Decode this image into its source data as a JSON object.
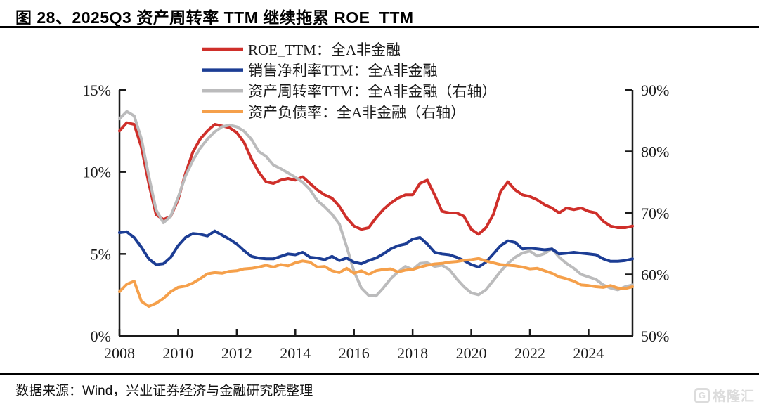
{
  "header": {
    "title": "图 28、2025Q3 资产周转率 TTM 继续拖累 ROE_TTM"
  },
  "footer": {
    "source_text": "数据来源：Wind，兴业证券经济与金融研究院整理"
  },
  "watermark": {
    "logo_letter": "G",
    "text": "格隆汇"
  },
  "chart_data": {
    "type": "line",
    "title": "",
    "grid": false,
    "legend_position": "top",
    "x": [
      2008.0,
      2008.25,
      2008.5,
      2008.75,
      2009.0,
      2009.25,
      2009.5,
      2009.75,
      2010.0,
      2010.25,
      2010.5,
      2010.75,
      2011.0,
      2011.25,
      2011.5,
      2011.75,
      2012.0,
      2012.25,
      2012.5,
      2012.75,
      2013.0,
      2013.25,
      2013.5,
      2013.75,
      2014.0,
      2014.25,
      2014.5,
      2014.75,
      2015.0,
      2015.25,
      2015.5,
      2015.75,
      2016.0,
      2016.25,
      2016.5,
      2016.75,
      2017.0,
      2017.25,
      2017.5,
      2017.75,
      2018.0,
      2018.25,
      2018.5,
      2018.75,
      2019.0,
      2019.25,
      2019.5,
      2019.75,
      2020.0,
      2020.25,
      2020.5,
      2020.75,
      2021.0,
      2021.25,
      2021.5,
      2021.75,
      2022.0,
      2022.25,
      2022.5,
      2022.75,
      2023.0,
      2023.25,
      2023.5,
      2023.75,
      2024.0,
      2024.25,
      2024.5,
      2024.75,
      2025.0,
      2025.25,
      2025.5
    ],
    "x_range": [
      2008.0,
      2025.5
    ],
    "x_tick_years": [
      2008,
      2010,
      2012,
      2014,
      2016,
      2018,
      2020,
      2022,
      2024
    ],
    "x_tick_labels": [
      "2008",
      "2010",
      "2012",
      "2014",
      "2016",
      "2018",
      "2020",
      "2022",
      "2024"
    ],
    "left_axis": {
      "min": 0,
      "max": 15,
      "tick_values": [
        0,
        5,
        10,
        15
      ],
      "tick_labels": [
        "0%",
        "5%",
        "10%",
        "15%"
      ]
    },
    "right_axis": {
      "min": 50,
      "max": 90,
      "tick_values": [
        50,
        60,
        70,
        80,
        90
      ],
      "tick_labels": [
        "50%",
        "60%",
        "70%",
        "80%",
        "90%"
      ]
    },
    "series": [
      {
        "name": "ROE_TTM：全A非金融",
        "axis": "left",
        "color": "#cf2f2a",
        "values": [
          12.5,
          13.0,
          12.9,
          11.5,
          9.3,
          7.4,
          7.1,
          7.3,
          8.3,
          9.9,
          11.2,
          12.0,
          12.5,
          12.9,
          12.8,
          12.7,
          12.4,
          11.8,
          10.8,
          10.0,
          9.4,
          9.3,
          9.5,
          9.6,
          9.5,
          9.7,
          9.3,
          8.9,
          8.6,
          8.4,
          7.9,
          7.2,
          6.7,
          6.5,
          6.6,
          7.2,
          7.7,
          8.1,
          8.4,
          8.6,
          8.6,
          9.3,
          9.5,
          8.6,
          7.6,
          7.5,
          7.5,
          7.3,
          6.5,
          6.2,
          6.6,
          7.4,
          8.8,
          9.4,
          8.9,
          8.6,
          8.5,
          8.3,
          8.0,
          7.8,
          7.5,
          7.8,
          7.7,
          7.8,
          7.6,
          7.5,
          7.0,
          6.7,
          6.6,
          6.6,
          6.7
        ]
      },
      {
        "name": "销售净利率TTM：全A非金融",
        "axis": "left",
        "color": "#1c3d94",
        "values": [
          6.3,
          6.35,
          6.0,
          5.4,
          4.7,
          4.35,
          4.4,
          4.8,
          5.5,
          6.0,
          6.25,
          6.2,
          6.1,
          6.4,
          6.15,
          5.9,
          5.6,
          5.2,
          4.85,
          4.75,
          4.7,
          4.7,
          4.85,
          5.0,
          4.95,
          5.1,
          4.8,
          4.75,
          4.65,
          4.85,
          4.6,
          4.75,
          4.5,
          4.4,
          4.6,
          4.75,
          5.0,
          5.3,
          5.5,
          5.6,
          5.9,
          6.0,
          5.6,
          5.1,
          5.0,
          4.95,
          4.8,
          4.6,
          4.35,
          4.2,
          4.5,
          5.0,
          5.5,
          5.8,
          5.7,
          5.3,
          5.35,
          5.3,
          5.25,
          5.3,
          5.0,
          5.05,
          5.1,
          5.05,
          5.0,
          4.95,
          4.7,
          4.55,
          4.55,
          4.6,
          4.7
        ]
      },
      {
        "name": "资产周转率TTM：全A非金融（右轴）",
        "axis": "right",
        "color": "#bbbbbc",
        "values": [
          85.3,
          86.5,
          85.8,
          82.0,
          76.0,
          70.5,
          68.4,
          69.5,
          72.5,
          76.0,
          78.5,
          80.5,
          82.0,
          83.2,
          84.0,
          84.3,
          84.0,
          83.3,
          82.0,
          80.0,
          79.2,
          77.8,
          77.2,
          76.5,
          75.8,
          75.0,
          73.8,
          72.0,
          71.0,
          69.8,
          68.2,
          64.5,
          60.5,
          57.8,
          56.6,
          56.5,
          57.8,
          59.3,
          60.4,
          61.3,
          60.8,
          61.8,
          61.9,
          61.3,
          61.5,
          60.8,
          59.3,
          58.0,
          57.0,
          56.7,
          57.5,
          59.0,
          60.5,
          61.8,
          62.8,
          63.5,
          63.8,
          63.0,
          63.4,
          64.2,
          62.8,
          61.8,
          61.0,
          60.0,
          59.6,
          59.2,
          58.3,
          57.8,
          57.5,
          58.0,
          58.3
        ]
      },
      {
        "name": "资产负债率：全A非金融（右轴）",
        "axis": "right",
        "color": "#f5a04b",
        "values": [
          57.2,
          58.4,
          58.9,
          55.6,
          54.8,
          55.3,
          56.1,
          57.2,
          57.9,
          58.1,
          58.6,
          59.3,
          60.1,
          60.3,
          60.2,
          60.5,
          60.6,
          60.9,
          61.0,
          61.2,
          61.5,
          61.2,
          61.6,
          61.4,
          61.9,
          62.2,
          62.0,
          61.2,
          61.3,
          60.6,
          60.3,
          61.0,
          60.2,
          60.6,
          60.0,
          60.6,
          60.8,
          60.9,
          60.4,
          60.7,
          60.8,
          61.2,
          61.5,
          61.7,
          61.8,
          62.0,
          62.1,
          62.3,
          62.4,
          62.6,
          62.2,
          61.9,
          61.6,
          61.5,
          61.4,
          61.2,
          60.9,
          61.0,
          60.6,
          60.2,
          59.6,
          59.3,
          58.9,
          58.3,
          58.2,
          58.0,
          57.9,
          58.2,
          57.8,
          57.7,
          58.0
        ]
      }
    ],
    "draw_order": [
      0,
      2,
      1,
      3
    ],
    "axis_color": "#1a1a1a"
  }
}
